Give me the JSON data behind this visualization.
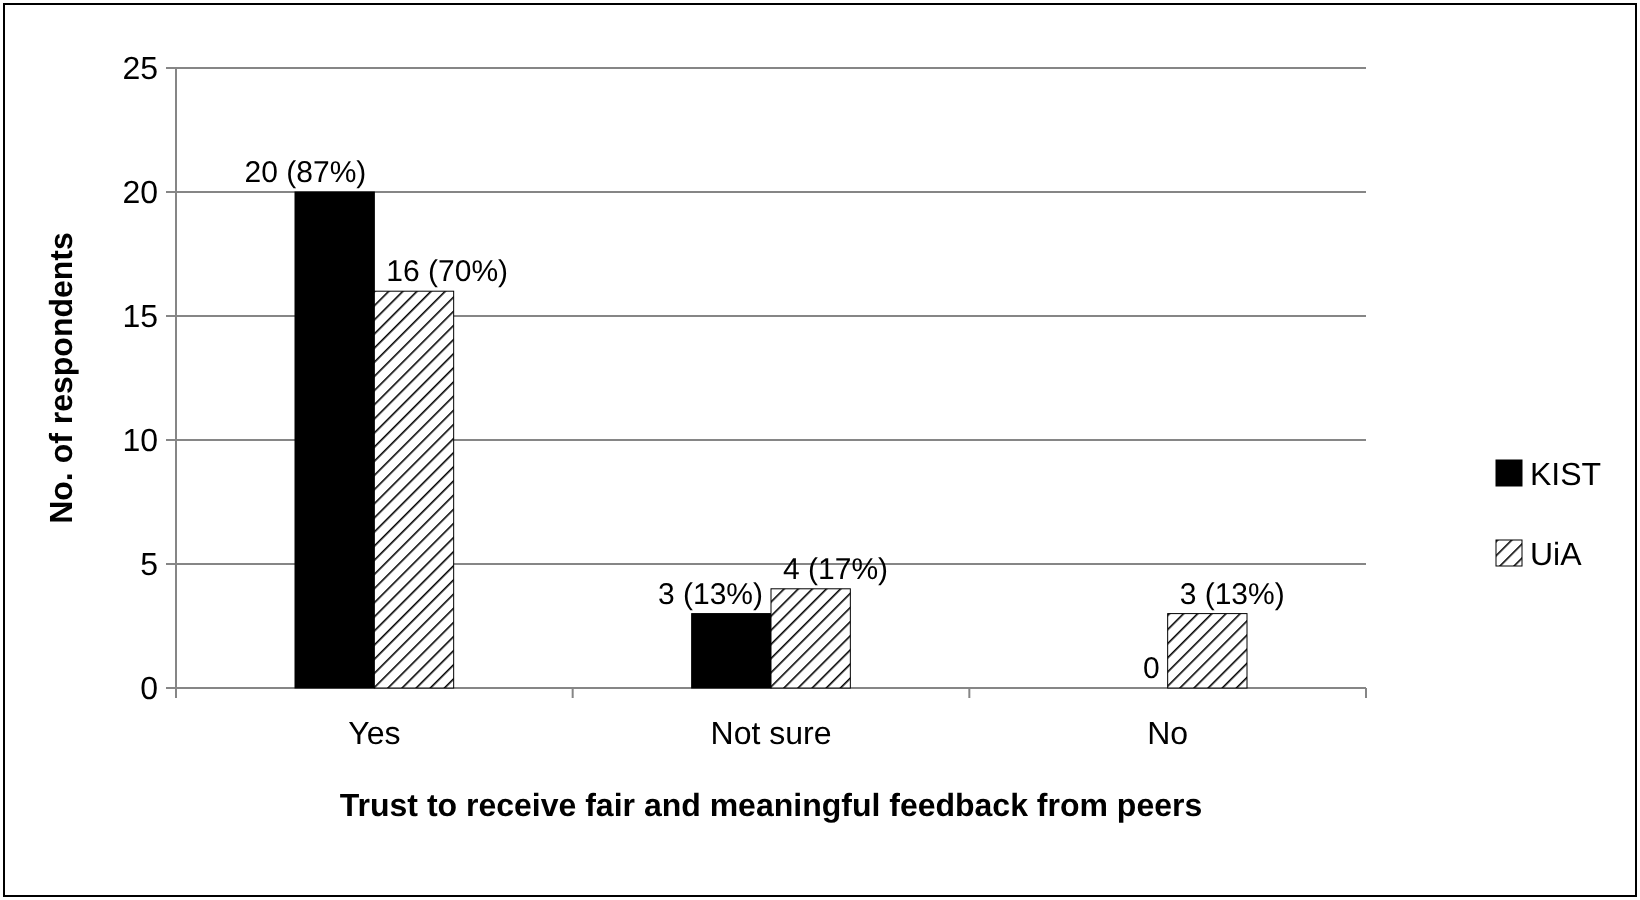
{
  "chart_data": {
    "type": "bar",
    "xlabel": "Trust to receive fair and meaningful feedback from peers",
    "ylabel": "No. of respondents",
    "categories": [
      "Yes",
      "Not sure",
      "No"
    ],
    "series": [
      {
        "name": "KIST",
        "color": "#000000",
        "values": [
          20,
          3,
          0
        ],
        "value_labels": [
          "20 (87%)",
          "3 (13%)",
          "0"
        ]
      },
      {
        "name": "UiA",
        "color": "#000000",
        "values": [
          16,
          4,
          3
        ],
        "value_labels": [
          "16 (70%)",
          "4 (17%)",
          "3 (13%)"
        ]
      }
    ],
    "ylim": [
      0,
      25
    ],
    "yticks": [
      0,
      5,
      10,
      15,
      20,
      25
    ],
    "grid": "y",
    "legend": "right"
  }
}
